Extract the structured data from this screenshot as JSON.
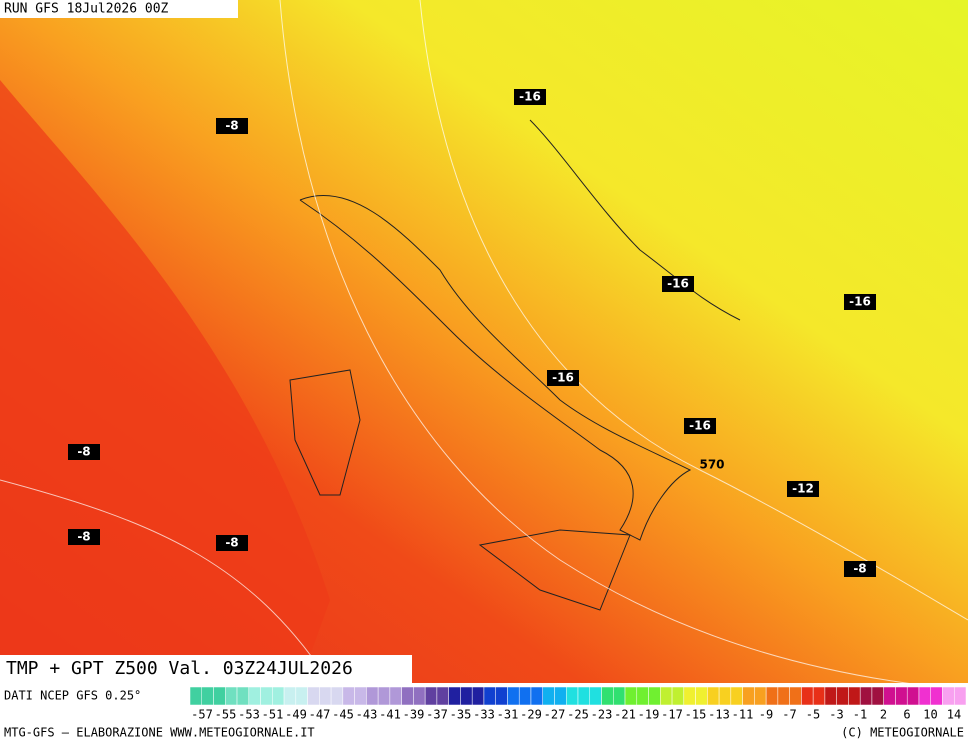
{
  "header": {
    "run": "RUN GFS 18Jul2026 00Z"
  },
  "map": {
    "labels": [
      "-16",
      "-8",
      "-16",
      "-16",
      "-16",
      "-16",
      "570",
      "-12",
      "-8",
      "-8",
      "-8",
      "-8"
    ]
  },
  "footer": {
    "title": "TMP + GPT Z500 Val. 03Z24JUL2026",
    "source": "DATI NCEP GFS 0.25°",
    "scale": [
      "-57",
      "-55",
      "-53",
      "-51",
      "-49",
      "-47",
      "-45",
      "-43",
      "-41",
      "-39",
      "-37",
      "-35",
      "-33",
      "-31",
      "-29",
      "-27",
      "-25",
      "-23",
      "-21",
      "-19",
      "-17",
      "-15",
      "-13",
      "-11",
      "-9",
      "-7",
      "-5",
      "-3",
      "-1",
      "2",
      "6",
      "10",
      "14"
    ],
    "credit": "MTG-GFS — ELABORAZIONE WWW.METEOGIORNALE.IT",
    "copyright": "(C) METEOGIORNALE"
  }
}
